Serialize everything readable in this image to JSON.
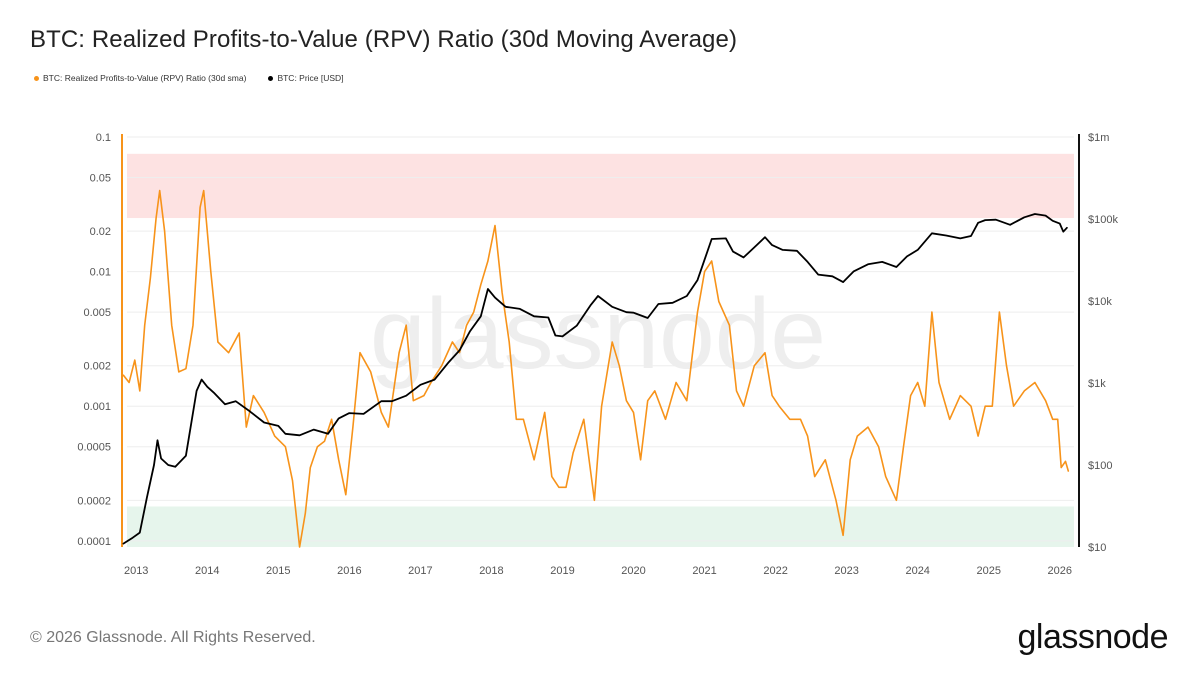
{
  "title": "BTC: Realized Profits-to-Value (RPV) Ratio (30d Moving Average)",
  "legend": [
    {
      "label": "BTC: Realized Profits-to-Value (RPV) Ratio (30d sma)",
      "color": "#f7931a"
    },
    {
      "label": "BTC: Price [USD]",
      "color": "#000000"
    }
  ],
  "watermark": "glassnode",
  "footer": {
    "copyright": "© 2026 Glassnode. All Rights Reserved.",
    "logo": "glassnode"
  },
  "colors": {
    "rpv": "#f7931a",
    "price": "#000000",
    "upper_band": "#fde2e2",
    "lower_band": "#e6f5ec",
    "grid": "#eeeeee"
  },
  "chart_data": {
    "type": "line",
    "x_label": "",
    "x_ticks": [
      "2013",
      "2014",
      "2015",
      "2016",
      "2017",
      "2018",
      "2019",
      "2020",
      "2021",
      "2022",
      "2023",
      "2024",
      "2025",
      "2026"
    ],
    "xlim": [
      2012.8,
      2026.2
    ],
    "y_left": {
      "scale": "log",
      "range": [
        9e-05,
        0.1
      ],
      "ticks": [
        0.1,
        0.05,
        0.02,
        0.01,
        0.005,
        0.002,
        0.001,
        0.0005,
        0.0002,
        0.0001
      ],
      "tick_labels": [
        "0.1",
        "0.05",
        "0.02",
        "0.01",
        "0.005",
        "0.002",
        "0.001",
        "0.0005",
        "0.0002",
        "0.0001"
      ]
    },
    "y_right": {
      "scale": "log",
      "range": [
        10,
        1000000
      ],
      "ticks": [
        1000000,
        100000,
        10000,
        1000,
        100,
        10
      ],
      "tick_labels": [
        "$1m",
        "$100k",
        "$10k",
        "$1k",
        "$100",
        "$10"
      ]
    },
    "bands": [
      {
        "name": "upper",
        "from": 0.025,
        "to": 0.075,
        "color": "#fde2e2"
      },
      {
        "name": "lower",
        "from": 9e-05,
        "to": 0.00018,
        "color": "#e6f5ec"
      }
    ],
    "series": [
      {
        "name": "BTC: Realized Profits-to-Value (RPV) Ratio (30d sma)",
        "axis": "left",
        "color": "#f7931a",
        "x": [
          2012.82,
          2012.9,
          2012.98,
          2013.05,
          2013.12,
          2013.2,
          2013.28,
          2013.33,
          2013.4,
          2013.5,
          2013.6,
          2013.7,
          2013.8,
          2013.9,
          2013.95,
          2014.05,
          2014.15,
          2014.3,
          2014.45,
          2014.55,
          2014.65,
          2014.8,
          2014.95,
          2015.1,
          2015.2,
          2015.3,
          2015.38,
          2015.45,
          2015.55,
          2015.65,
          2015.75,
          2015.85,
          2015.95,
          2016.05,
          2016.15,
          2016.3,
          2016.45,
          2016.55,
          2016.7,
          2016.8,
          2016.9,
          2017.05,
          2017.15,
          2017.3,
          2017.45,
          2017.55,
          2017.65,
          2017.75,
          2017.85,
          2017.95,
          2018.05,
          2018.15,
          2018.25,
          2018.35,
          2018.45,
          2018.6,
          2018.75,
          2018.85,
          2018.95,
          2019.05,
          2019.15,
          2019.3,
          2019.45,
          2019.55,
          2019.7,
          2019.8,
          2019.9,
          2020.0,
          2020.1,
          2020.2,
          2020.3,
          2020.45,
          2020.6,
          2020.75,
          2020.9,
          2021.0,
          2021.1,
          2021.2,
          2021.35,
          2021.45,
          2021.55,
          2021.7,
          2021.85,
          2021.95,
          2022.05,
          2022.2,
          2022.35,
          2022.45,
          2022.55,
          2022.7,
          2022.85,
          2022.95,
          2023.05,
          2023.15,
          2023.3,
          2023.45,
          2023.55,
          2023.7,
          2023.8,
          2023.9,
          2024.0,
          2024.1,
          2024.2,
          2024.3,
          2024.45,
          2024.6,
          2024.75,
          2024.85,
          2024.95,
          2025.05,
          2025.15,
          2025.25,
          2025.35,
          2025.5,
          2025.65,
          2025.8,
          2025.9,
          2025.97,
          2026.02,
          2026.08,
          2026.12
        ],
        "values": [
          0.0017,
          0.0015,
          0.0022,
          0.0013,
          0.004,
          0.009,
          0.025,
          0.04,
          0.02,
          0.004,
          0.0018,
          0.0019,
          0.004,
          0.03,
          0.04,
          0.01,
          0.003,
          0.0025,
          0.0035,
          0.0007,
          0.0012,
          0.0009,
          0.0006,
          0.0005,
          0.00028,
          9e-05,
          0.00016,
          0.00035,
          0.0005,
          0.00055,
          0.0008,
          0.0004,
          0.00022,
          0.0007,
          0.0025,
          0.0018,
          0.0009,
          0.0007,
          0.0025,
          0.004,
          0.0011,
          0.0012,
          0.0015,
          0.002,
          0.003,
          0.0025,
          0.004,
          0.005,
          0.008,
          0.012,
          0.022,
          0.007,
          0.003,
          0.0008,
          0.0008,
          0.0004,
          0.0009,
          0.0003,
          0.00025,
          0.00025,
          0.00045,
          0.0008,
          0.0002,
          0.001,
          0.003,
          0.002,
          0.0011,
          0.0009,
          0.0004,
          0.0011,
          0.0013,
          0.0008,
          0.0015,
          0.0011,
          0.005,
          0.01,
          0.012,
          0.006,
          0.004,
          0.0013,
          0.001,
          0.002,
          0.0025,
          0.0012,
          0.001,
          0.0008,
          0.0008,
          0.0006,
          0.0003,
          0.0004,
          0.0002,
          0.00011,
          0.0004,
          0.0006,
          0.0007,
          0.0005,
          0.0003,
          0.0002,
          0.0005,
          0.0012,
          0.0015,
          0.001,
          0.005,
          0.0015,
          0.0008,
          0.0012,
          0.001,
          0.0006,
          0.001,
          0.001,
          0.005,
          0.002,
          0.001,
          0.0013,
          0.0015,
          0.0011,
          0.0008,
          0.0008,
          0.00035,
          0.00039,
          0.00033
        ]
      },
      {
        "name": "BTC: Price [USD]",
        "axis": "right",
        "color": "#000000",
        "x": [
          2012.82,
          2012.95,
          2013.05,
          2013.15,
          2013.25,
          2013.3,
          2013.35,
          2013.45,
          2013.55,
          2013.7,
          2013.85,
          2013.92,
          2014.0,
          2014.1,
          2014.25,
          2014.4,
          2014.6,
          2014.8,
          2015.0,
          2015.1,
          2015.3,
          2015.5,
          2015.7,
          2015.85,
          2016.0,
          2016.2,
          2016.45,
          2016.6,
          2016.8,
          2017.0,
          2017.2,
          2017.4,
          2017.55,
          2017.7,
          2017.85,
          2017.95,
          2018.05,
          2018.2,
          2018.4,
          2018.6,
          2018.8,
          2018.9,
          2019.0,
          2019.2,
          2019.4,
          2019.5,
          2019.7,
          2019.9,
          2020.0,
          2020.2,
          2020.35,
          2020.55,
          2020.75,
          2020.9,
          2021.0,
          2021.1,
          2021.3,
          2021.4,
          2021.55,
          2021.7,
          2021.85,
          2021.95,
          2022.1,
          2022.3,
          2022.45,
          2022.6,
          2022.8,
          2022.95,
          2023.1,
          2023.3,
          2023.5,
          2023.7,
          2023.85,
          2024.0,
          2024.2,
          2024.4,
          2024.6,
          2024.75,
          2024.85,
          2024.95,
          2025.1,
          2025.3,
          2025.5,
          2025.65,
          2025.8,
          2025.9,
          2026.0,
          2026.05,
          2026.1
        ],
        "values": [
          11,
          13,
          15,
          40,
          100,
          200,
          120,
          100,
          95,
          130,
          800,
          1100,
          900,
          750,
          550,
          600,
          450,
          330,
          300,
          240,
          230,
          270,
          240,
          370,
          430,
          420,
          600,
          600,
          700,
          950,
          1100,
          1800,
          2500,
          4300,
          6500,
          14000,
          11000,
          8500,
          8000,
          6500,
          6300,
          3800,
          3700,
          5000,
          9000,
          11500,
          8500,
          7300,
          7200,
          6200,
          9200,
          9500,
          11500,
          18000,
          32000,
          57000,
          58000,
          40000,
          34000,
          45000,
          60000,
          48000,
          42000,
          41000,
          30000,
          21000,
          20000,
          17000,
          23000,
          28000,
          30000,
          26000,
          35000,
          42000,
          67000,
          63000,
          58000,
          62000,
          90000,
          97000,
          98000,
          85000,
          105000,
          115000,
          110000,
          95000,
          88000,
          70000,
          78000
        ]
      }
    ]
  }
}
